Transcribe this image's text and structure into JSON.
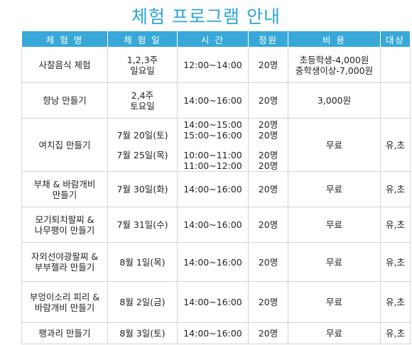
{
  "title": "체험 프로그램 안내",
  "headers": [
    "체 험 명",
    "체 험 일",
    "시  간",
    "정원",
    "비 용",
    "대상"
  ],
  "rows": [
    {
      "name": [
        "사찰음식 체험"
      ],
      "date": [
        "1,2,3주",
        "일요일"
      ],
      "time": [
        "12:00~14:00"
      ],
      "capacity": [
        "20명"
      ],
      "cost": [
        "초등학생-4,000원",
        "중학생이상-7,000원"
      ],
      "target": []
    },
    {
      "name": [
        "향낭 만들기"
      ],
      "date": [
        "2,4주",
        "토요일"
      ],
      "time": [
        "14:00~16:00"
      ],
      "capacity": [
        "20명"
      ],
      "cost": [
        "3,000원"
      ],
      "target": []
    },
    {
      "name": [
        "여치집 만들기"
      ],
      "date": [
        "7월 20일(토)",
        "",
        "7월 25일(목)"
      ],
      "time": [
        "14:00~15:00",
        "15:00~16:00",
        "",
        "10:00~11:00",
        "11:00~12:00"
      ],
      "capacity": [
        "20명",
        "20명",
        "",
        "20명",
        "20명"
      ],
      "cost": [
        "무료"
      ],
      "target": [
        "유,초"
      ]
    },
    {
      "name": [
        "부채 & 바람개비",
        "만들기"
      ],
      "date": [
        "7월 30일(화)"
      ],
      "time": [
        "14:00~16:00"
      ],
      "capacity": [
        "20명"
      ],
      "cost": [
        "무료"
      ],
      "target": [
        "유,초"
      ]
    },
    {
      "name": [
        "모기퇴치팔찌 &",
        "나무팽이 만들기"
      ],
      "date": [
        "7월 31일(수)"
      ],
      "time": [
        "14:00~16:00"
      ],
      "capacity": [
        "20명"
      ],
      "cost": [
        "무료"
      ],
      "target": [
        "유,초"
      ]
    },
    {
      "name": [
        "자외선야광팔찌 &",
        "부부젤라 만들기"
      ],
      "date": [
        "8월 1일(목)"
      ],
      "time": [
        "14:00~16:00"
      ],
      "capacity": [
        "20명"
      ],
      "cost": [
        "무료"
      ],
      "target": [
        "유,초"
      ]
    },
    {
      "name": [
        "부엉이소리 피리 &",
        "바람개비 만들기"
      ],
      "date": [
        "8월 2일(금)"
      ],
      "time": [
        "14:00~16:00"
      ],
      "capacity": [
        "20명"
      ],
      "cost": [
        "무료"
      ],
      "target": [
        "유,초"
      ]
    },
    {
      "name": [
        "팽과리 만들기"
      ],
      "date": [
        "8월 3일(토)"
      ],
      "time": [
        "14:00~16:00"
      ],
      "capacity": [
        "20명"
      ],
      "cost": [
        "무료"
      ],
      "target": [
        "유,초"
      ]
    }
  ]
}
